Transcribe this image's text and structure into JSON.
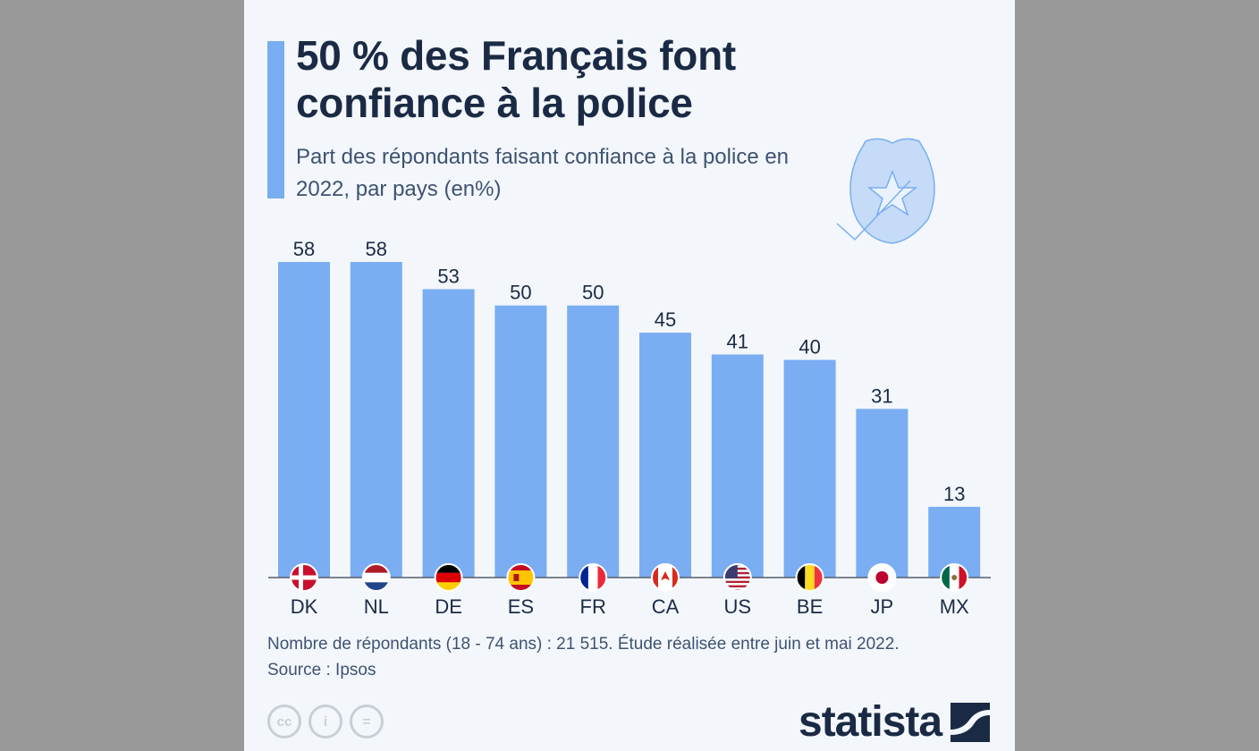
{
  "header": {
    "title": "50 % des Français font confiance à la police",
    "subtitle": "Part des répondants faisant confiance à la police en 2022, par pays (en%)",
    "illustration": "police-badge-icon"
  },
  "chart_data": {
    "type": "bar",
    "categories": [
      "DK",
      "NL",
      "DE",
      "ES",
      "FR",
      "CA",
      "US",
      "BE",
      "JP",
      "MX"
    ],
    "values": [
      58,
      58,
      53,
      50,
      50,
      45,
      41,
      40,
      31,
      13
    ],
    "title": "50 % des Français font confiance à la police",
    "subtitle": "Part des répondants faisant confiance à la police en 2022, par pays (en%)",
    "ylim": [
      0,
      58
    ],
    "grid": false,
    "data_labels": true,
    "bar_color": "#7aadf2",
    "flags": [
      "denmark",
      "netherlands",
      "germany",
      "spain",
      "france",
      "canada",
      "usa",
      "belgium",
      "japan",
      "mexico"
    ]
  },
  "footer": {
    "note": "Nombre de répondants (18 - 74 ans) : 21 515. Étude réalisée entre juin et mai 2022.",
    "source": "Source : Ipsos",
    "license_icons": [
      "cc",
      "i",
      "="
    ],
    "brand": "statista"
  },
  "colors": {
    "accent": "#79acf1",
    "text": "#1b2a44",
    "background": "#f3f7fb"
  }
}
